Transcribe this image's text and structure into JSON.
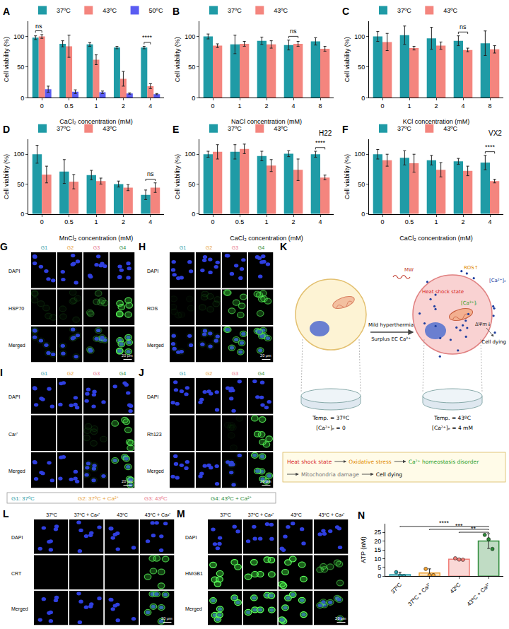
{
  "chart_data": [
    {
      "label": "A",
      "type": "bar",
      "categories": [
        "0",
        "0.5",
        "1",
        "2",
        "4"
      ],
      "x_label": "CaCl₂ concentration (mM)",
      "y_label": "Cell viability (%)",
      "ylim": [
        0,
        125
      ],
      "yticks": [
        0,
        50,
        100
      ],
      "grid": false,
      "legend": "top left",
      "series": [
        {
          "name": "37ºC",
          "color": "#1f9ba6",
          "values": [
            98,
            88,
            87,
            82,
            82
          ],
          "errors": [
            3,
            5,
            3,
            2,
            2
          ]
        },
        {
          "name": "43ºC",
          "color": "#f4857e",
          "values": [
            100,
            84,
            62,
            31,
            19
          ],
          "errors": [
            3,
            18,
            8,
            12,
            4
          ]
        },
        {
          "name": "50ºC",
          "color": "#5a5cf2",
          "values": [
            14,
            10,
            9,
            7,
            6
          ],
          "errors": [
            5,
            3,
            2,
            1,
            1
          ]
        }
      ],
      "annotations": [
        {
          "category": "0",
          "text": "ns"
        },
        {
          "category": "4",
          "text": "****"
        }
      ]
    },
    {
      "label": "B",
      "type": "bar",
      "categories": [
        "0",
        "1",
        "2",
        "4",
        "8"
      ],
      "x_label": "NaCl concentration (mM)",
      "y_label": "Cell viability (%)",
      "ylim": [
        0,
        125
      ],
      "yticks": [
        0,
        50,
        100
      ],
      "grid": false,
      "legend": "top left",
      "series": [
        {
          "name": "37ºC",
          "color": "#1f9ba6",
          "values": [
            100,
            87,
            93,
            86,
            92
          ],
          "errors": [
            4,
            15,
            6,
            8,
            6
          ]
        },
        {
          "name": "43ºC",
          "color": "#f4857e",
          "values": [
            85,
            88,
            87,
            88,
            80
          ],
          "errors": [
            3,
            4,
            6,
            4,
            4
          ]
        }
      ],
      "annotations": [
        {
          "category": "4",
          "text": "ns"
        }
      ]
    },
    {
      "label": "C",
      "type": "bar",
      "categories": [
        "0",
        "1",
        "2",
        "4",
        "8"
      ],
      "x_label": "KCl concentration (mM)",
      "y_label": "Cell viability (%)",
      "ylim": [
        0,
        125
      ],
      "yticks": [
        0,
        50,
        100
      ],
      "grid": false,
      "legend": "top left",
      "series": [
        {
          "name": "37ºC",
          "color": "#1f9ba6",
          "values": [
            100,
            102,
            97,
            93,
            89
          ],
          "errors": [
            8,
            15,
            18,
            8,
            20
          ]
        },
        {
          "name": "43ºC",
          "color": "#f4857e",
          "values": [
            91,
            81,
            85,
            78,
            79
          ],
          "errors": [
            14,
            3,
            6,
            3,
            6
          ]
        }
      ],
      "annotations": [
        {
          "category": "4",
          "text": "ns"
        }
      ]
    },
    {
      "label": "D",
      "type": "bar",
      "categories": [
        "0",
        "0.5",
        "1",
        "2",
        "4"
      ],
      "x_label": "MnCl₂ concentration (mM)",
      "y_label": "Cell viability (%)",
      "ylim": [
        0,
        125
      ],
      "yticks": [
        0,
        50,
        100
      ],
      "grid": false,
      "legend": "top left",
      "series": [
        {
          "name": "37ºC",
          "color": "#1f9ba6",
          "values": [
            100,
            71,
            65,
            50,
            32
          ],
          "errors": [
            15,
            20,
            8,
            5,
            8
          ]
        },
        {
          "name": "43ºC",
          "color": "#f4857e",
          "values": [
            66,
            54,
            55,
            44,
            44
          ],
          "errors": [
            14,
            12,
            5,
            5,
            8
          ]
        }
      ],
      "annotations": [
        {
          "category": "4",
          "text": "ns"
        }
      ]
    },
    {
      "label": "E",
      "type": "bar",
      "title": "H22",
      "categories": [
        "0",
        "0.5",
        "1",
        "2",
        "4"
      ],
      "x_label": "CaCl₂ concentration (mM)",
      "y_label": "Cell viability (%)",
      "ylim": [
        0,
        125
      ],
      "yticks": [
        0,
        50,
        100
      ],
      "grid": false,
      "legend": "top left",
      "series": [
        {
          "name": "37ºC",
          "color": "#1f9ba6",
          "values": [
            100,
            104,
            97,
            101,
            100
          ],
          "errors": [
            5,
            12,
            8,
            5,
            5
          ]
        },
        {
          "name": "43ºC",
          "color": "#f4857e",
          "values": [
            104,
            109,
            81,
            74,
            61
          ],
          "errors": [
            12,
            8,
            10,
            18,
            4
          ]
        }
      ],
      "annotations": [
        {
          "category": "4",
          "text": "****"
        }
      ]
    },
    {
      "label": "F",
      "type": "bar",
      "title": "VX2",
      "categories": [
        "0",
        "0.5",
        "1",
        "2",
        "4"
      ],
      "x_label": "CaCl₂ concentration (mM)",
      "y_label": "Cell viability (%)",
      "ylim": [
        0,
        125
      ],
      "yticks": [
        0,
        50,
        100
      ],
      "grid": false,
      "legend": "top left",
      "series": [
        {
          "name": "37ºC",
          "color": "#1f9ba6",
          "values": [
            100,
            94,
            90,
            88,
            86
          ],
          "errors": [
            8,
            12,
            8,
            5,
            12
          ]
        },
        {
          "name": "43ºC",
          "color": "#f4857e",
          "values": [
            90,
            85,
            74,
            72,
            55
          ],
          "errors": [
            10,
            15,
            12,
            8,
            3
          ]
        }
      ],
      "annotations": [
        {
          "category": "4",
          "text": "****"
        }
      ]
    },
    {
      "label": "N",
      "type": "bar",
      "categories": [
        "37ºC",
        "37ºC + Ca²⁺",
        "43ºC",
        "43ºC + Ca²⁺"
      ],
      "y_label": "ATP (nM)",
      "ylim": [
        0,
        30
      ],
      "yticks": [
        0,
        5,
        10,
        15,
        20,
        25
      ],
      "grid": false,
      "series": [
        {
          "colors": [
            "#2a9fab",
            "#f0a030",
            "#f07e78",
            "#2e8b3a"
          ],
          "marker": "circle",
          "values": [
            0.9,
            1.8,
            9.7,
            20
          ],
          "errors": [
            1.4,
            2.4,
            0.4,
            4.2
          ],
          "points": [
            [
              2.3,
              0.3,
              0.1
            ],
            [
              4.2,
              0.6,
              0.6
            ],
            [
              10.2,
              9.5,
              9.4
            ],
            [
              23.5,
              21,
              15.5
            ]
          ]
        }
      ],
      "comparisons": [
        {
          "from": "43ºC",
          "to": "43ºC + Ca²⁺",
          "text": "**"
        },
        {
          "from": "37ºC + Ca²⁺",
          "to": "43ºC + Ca²⁺",
          "text": "***"
        },
        {
          "from": "37ºC",
          "to": "43ºC + Ca²⁺",
          "text": "****"
        }
      ]
    }
  ],
  "image_panels": [
    {
      "label": "G",
      "columns": [
        "G1",
        "G2",
        "G3",
        "G4"
      ],
      "column_colors": [
        "#1f9ba6",
        "#e8a23a",
        "#e8748a",
        "#2e8b3a"
      ],
      "rows": [
        "DAPI",
        "HSP70",
        "Merged"
      ],
      "signal": [
        0.1,
        0.1,
        0.3,
        0.8
      ],
      "scale_bar": "20 μm"
    },
    {
      "label": "H",
      "columns": [
        "G1",
        "G2",
        "G3",
        "G4"
      ],
      "column_colors": [
        "#1f9ba6",
        "#e8a23a",
        "#e8748a",
        "#2e8b3a"
      ],
      "rows": [
        "DAPI",
        "ROS",
        "Merged"
      ],
      "signal": [
        0.05,
        0.1,
        0.6,
        0.6
      ],
      "scale_bar": "20 μm"
    },
    {
      "label": "I",
      "columns": [
        "G1",
        "G2",
        "G3",
        "G4"
      ],
      "column_colors": [
        "#1f9ba6",
        "#e8a23a",
        "#e8748a",
        "#2e8b3a"
      ],
      "rows": [
        "DAPI",
        "Ca²⁺",
        "Merged"
      ],
      "signal": [
        0,
        0,
        0.1,
        0.7
      ],
      "scale_bar": "20 μm"
    },
    {
      "label": "J",
      "columns": [
        "G1",
        "G2",
        "G3",
        "G4"
      ],
      "column_colors": [
        "#1f9ba6",
        "#e8a23a",
        "#e8748a",
        "#2e8b3a"
      ],
      "rows": [
        "DAPI",
        "Rh123",
        "Merged"
      ],
      "signal": [
        0,
        0,
        0.05,
        0.8
      ],
      "scale_bar": "20 μm"
    },
    {
      "label": "L",
      "columns": [
        "37ºC",
        "37ºC + Ca²⁺",
        "43ºC",
        "43ºC + Ca²⁺"
      ],
      "rows": [
        "DAPI",
        "CRT",
        "Merged"
      ],
      "signal": [
        0,
        0,
        0,
        0.7
      ],
      "scale_bar": "20 μm"
    },
    {
      "label": "M",
      "columns": [
        "37ºC",
        "37ºC + Ca²⁺",
        "43ºC",
        "43ºC + Ca²⁺"
      ],
      "rows": [
        "DAPI",
        "HMGB1",
        "Merged"
      ],
      "signal": [
        1,
        1,
        1,
        0.5
      ],
      "scale_bar": "20 μm"
    }
  ],
  "group_legend": [
    {
      "text": "G1: 37ºC",
      "color": "#1f9ba6"
    },
    {
      "text": "G2: 37ºC + Ca²⁺",
      "color": "#e8a23a"
    },
    {
      "text": "G3: 43ºC",
      "color": "#e8748a"
    },
    {
      "text": "G4: 43ºC + Ca²⁺",
      "color": "#2e8b3a"
    }
  ],
  "schematic": {
    "label": "K",
    "left": {
      "temperature": "Temp. = 37ºC",
      "calcium": "[Ca²⁺]ₑ = 0"
    },
    "right": {
      "temperature": "Temp. = 43ºC",
      "calcium": "[Ca²⁺]ₑ = 4 mM"
    },
    "arrow_top": "Mild hyperthermia",
    "arrow_bottom": "Surplus EC Ca²⁺",
    "cell_labels": [
      {
        "text": "MW",
        "color": "#c0392b"
      },
      {
        "text": "ROS↑",
        "color": "#e08a00"
      },
      {
        "text": "[Ca²⁺]ₑ",
        "color": "#1f3f9f"
      },
      {
        "text": "Heat shock state",
        "color": "#d62728"
      },
      {
        "text": "[Ca²⁺]ᵢ",
        "color": "#2ca02c"
      },
      {
        "text": "ΔΨm↓",
        "color": "#333333"
      },
      {
        "text": "Cell dying",
        "color": "#000000"
      }
    ],
    "pathway": [
      {
        "text": "Heat shock state",
        "color": "#d62728"
      },
      {
        "text": "Oxidative stress",
        "color": "#e08a00"
      },
      {
        "text": "Ca²⁺ homeostasis disorder",
        "color": "#2ca02c"
      },
      {
        "text": "Mitochondria damage",
        "color": "#777777"
      },
      {
        "text": "Cell dying",
        "color": "#000000"
      }
    ]
  }
}
